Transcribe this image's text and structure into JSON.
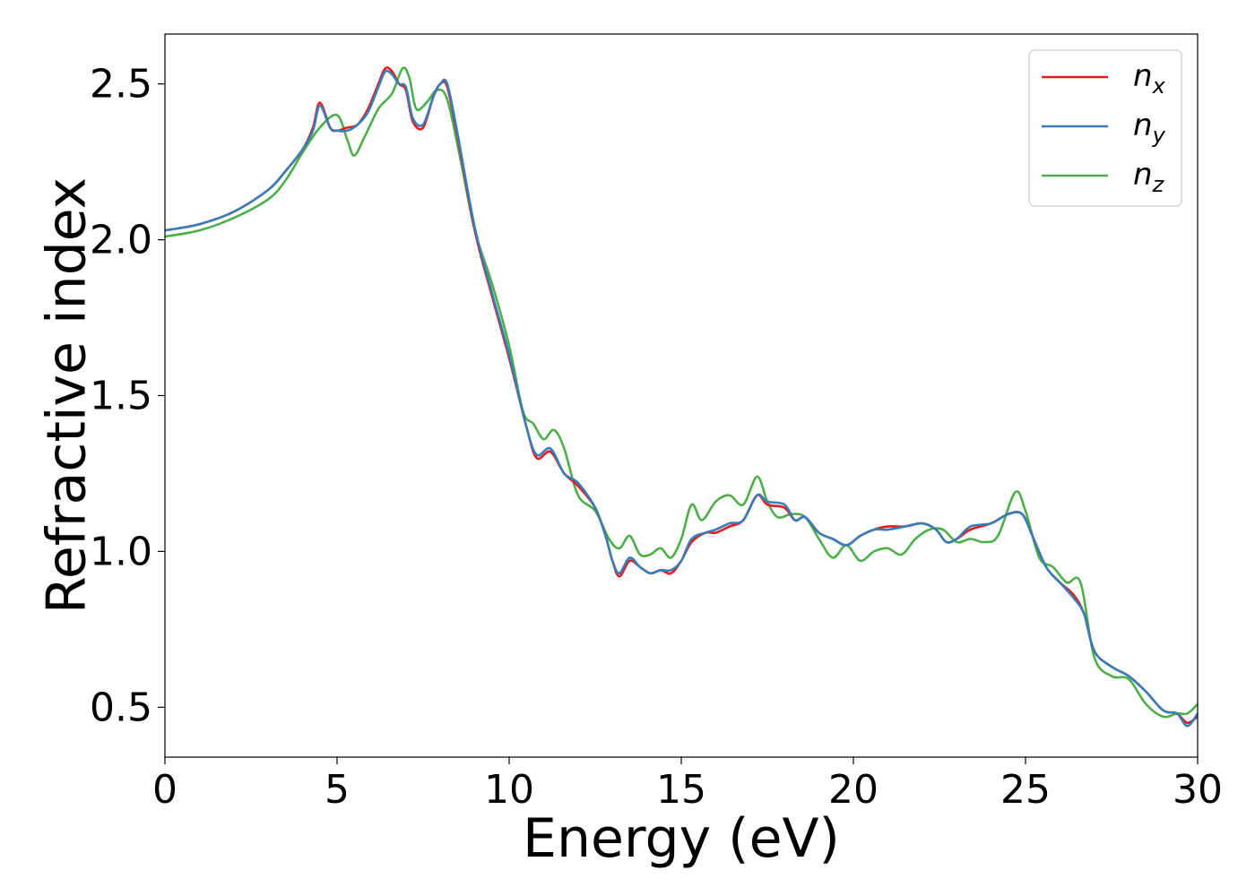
{
  "chart_data": {
    "type": "line",
    "title": "",
    "xlabel": "Energy (eV)",
    "ylabel": "Refractive index",
    "xlim": [
      0,
      30
    ],
    "ylim": [
      0.34,
      2.66
    ],
    "xticks": [
      0,
      5,
      10,
      15,
      20,
      25,
      30
    ],
    "xtick_labels": [
      "0",
      "5",
      "10",
      "15",
      "20",
      "25",
      "30"
    ],
    "yticks": [
      0.5,
      1.0,
      1.5,
      2.0,
      2.5
    ],
    "ytick_labels": [
      "0.5",
      "1.0",
      "1.5",
      "2.0",
      "2.5"
    ],
    "grid": false,
    "legend_position": "top-right",
    "series": [
      {
        "name": "n_x",
        "label_main": "n",
        "label_sub": "x",
        "color": "#e41a1c",
        "x": [
          0,
          1,
          2,
          3,
          3.5,
          4,
          4.3,
          4.5,
          4.8,
          5.0,
          5.3,
          5.6,
          5.9,
          6.2,
          6.4,
          6.6,
          6.8,
          7.0,
          7.2,
          7.5,
          7.8,
          8.0,
          8.2,
          8.5,
          9.0,
          9.5,
          10.0,
          10.5,
          10.8,
          11.2,
          11.6,
          12.0,
          12.5,
          12.8,
          13.0,
          13.2,
          13.5,
          13.8,
          14.1,
          14.4,
          14.7,
          15.0,
          15.3,
          15.7,
          16.0,
          16.4,
          16.8,
          17.2,
          17.5,
          18.0,
          18.3,
          18.6,
          19.0,
          19.4,
          19.8,
          20.2,
          20.6,
          21.0,
          21.5,
          22.0,
          22.4,
          22.7,
          23.0,
          23.4,
          24.0,
          24.5,
          24.9,
          25.2,
          25.6,
          26.0,
          26.4,
          26.7,
          27.0,
          27.5,
          28.0,
          28.5,
          29.0,
          29.4,
          29.7,
          30.0
        ],
        "y": [
          2.03,
          2.05,
          2.09,
          2.16,
          2.22,
          2.29,
          2.36,
          2.44,
          2.36,
          2.35,
          2.36,
          2.37,
          2.42,
          2.5,
          2.55,
          2.54,
          2.5,
          2.48,
          2.38,
          2.36,
          2.46,
          2.5,
          2.49,
          2.33,
          2.03,
          1.82,
          1.62,
          1.4,
          1.3,
          1.32,
          1.25,
          1.21,
          1.14,
          1.05,
          0.97,
          0.92,
          0.97,
          0.95,
          0.93,
          0.94,
          0.93,
          0.97,
          1.03,
          1.06,
          1.06,
          1.08,
          1.1,
          1.18,
          1.15,
          1.14,
          1.1,
          1.11,
          1.06,
          1.04,
          1.02,
          1.05,
          1.07,
          1.08,
          1.08,
          1.09,
          1.07,
          1.03,
          1.04,
          1.07,
          1.09,
          1.12,
          1.12,
          1.05,
          0.95,
          0.9,
          0.86,
          0.8,
          0.68,
          0.63,
          0.6,
          0.55,
          0.49,
          0.48,
          0.45,
          0.47
        ]
      },
      {
        "name": "n_y",
        "label_main": "n",
        "label_sub": "y",
        "color": "#377eb8",
        "x": [
          0,
          1,
          2,
          3,
          3.5,
          4,
          4.3,
          4.5,
          4.8,
          5.0,
          5.3,
          5.6,
          5.9,
          6.2,
          6.4,
          6.6,
          6.8,
          7.0,
          7.2,
          7.5,
          7.8,
          8.0,
          8.2,
          8.5,
          9.0,
          9.5,
          10.0,
          10.5,
          10.8,
          11.2,
          11.6,
          12.0,
          12.5,
          12.8,
          13.0,
          13.2,
          13.5,
          13.8,
          14.1,
          14.4,
          14.7,
          15.0,
          15.3,
          15.7,
          16.0,
          16.4,
          16.8,
          17.2,
          17.5,
          18.0,
          18.3,
          18.6,
          19.0,
          19.4,
          19.8,
          20.2,
          20.6,
          21.0,
          21.5,
          22.0,
          22.4,
          22.7,
          23.0,
          23.4,
          24.0,
          24.5,
          24.9,
          25.2,
          25.6,
          26.0,
          26.4,
          26.7,
          27.0,
          27.5,
          28.0,
          28.5,
          29.0,
          29.4,
          29.7,
          30.0
        ],
        "y": [
          2.03,
          2.05,
          2.09,
          2.16,
          2.22,
          2.29,
          2.35,
          2.43,
          2.36,
          2.35,
          2.35,
          2.37,
          2.41,
          2.49,
          2.54,
          2.53,
          2.5,
          2.49,
          2.39,
          2.37,
          2.46,
          2.5,
          2.5,
          2.34,
          2.04,
          1.83,
          1.63,
          1.4,
          1.31,
          1.33,
          1.25,
          1.22,
          1.14,
          1.05,
          0.97,
          0.93,
          0.98,
          0.95,
          0.93,
          0.94,
          0.94,
          0.97,
          1.04,
          1.06,
          1.07,
          1.09,
          1.1,
          1.18,
          1.16,
          1.15,
          1.1,
          1.11,
          1.06,
          1.04,
          1.02,
          1.05,
          1.07,
          1.07,
          1.08,
          1.09,
          1.07,
          1.03,
          1.04,
          1.08,
          1.09,
          1.12,
          1.12,
          1.05,
          0.95,
          0.9,
          0.85,
          0.8,
          0.68,
          0.63,
          0.6,
          0.55,
          0.49,
          0.48,
          0.44,
          0.48
        ]
      },
      {
        "name": "n_z",
        "label_main": "n",
        "label_sub": "z",
        "color": "#4daf4a",
        "x": [
          0,
          1,
          2,
          3,
          3.5,
          4,
          4.5,
          5.0,
          5.3,
          5.5,
          5.8,
          6.2,
          6.6,
          6.9,
          7.1,
          7.3,
          7.6,
          7.9,
          8.2,
          8.6,
          9.0,
          9.5,
          10.0,
          10.4,
          10.7,
          11.0,
          11.3,
          11.6,
          12.0,
          12.5,
          12.9,
          13.2,
          13.5,
          13.8,
          14.1,
          14.4,
          14.7,
          15.0,
          15.3,
          15.6,
          16.0,
          16.4,
          16.8,
          17.2,
          17.5,
          17.8,
          18.2,
          18.6,
          19.0,
          19.4,
          19.8,
          20.2,
          20.6,
          21.0,
          21.4,
          21.8,
          22.2,
          22.6,
          23.0,
          23.4,
          23.8,
          24.2,
          24.7,
          25.0,
          25.4,
          25.8,
          26.2,
          26.6,
          27.0,
          27.5,
          28.0,
          28.5,
          29.0,
          29.4,
          29.7,
          30.0
        ],
        "y": [
          2.01,
          2.03,
          2.07,
          2.13,
          2.19,
          2.28,
          2.36,
          2.4,
          2.32,
          2.27,
          2.33,
          2.42,
          2.47,
          2.55,
          2.52,
          2.42,
          2.44,
          2.48,
          2.45,
          2.25,
          2.03,
          1.86,
          1.66,
          1.45,
          1.41,
          1.36,
          1.39,
          1.33,
          1.18,
          1.13,
          1.04,
          1.01,
          1.05,
          0.99,
          0.99,
          1.01,
          0.98,
          1.04,
          1.15,
          1.1,
          1.16,
          1.18,
          1.15,
          1.24,
          1.16,
          1.11,
          1.12,
          1.11,
          1.04,
          0.98,
          1.02,
          0.97,
          1.0,
          1.01,
          0.99,
          1.04,
          1.07,
          1.07,
          1.03,
          1.04,
          1.03,
          1.05,
          1.19,
          1.13,
          0.98,
          0.95,
          0.9,
          0.9,
          0.66,
          0.6,
          0.59,
          0.51,
          0.47,
          0.48,
          0.48,
          0.51
        ]
      }
    ]
  }
}
